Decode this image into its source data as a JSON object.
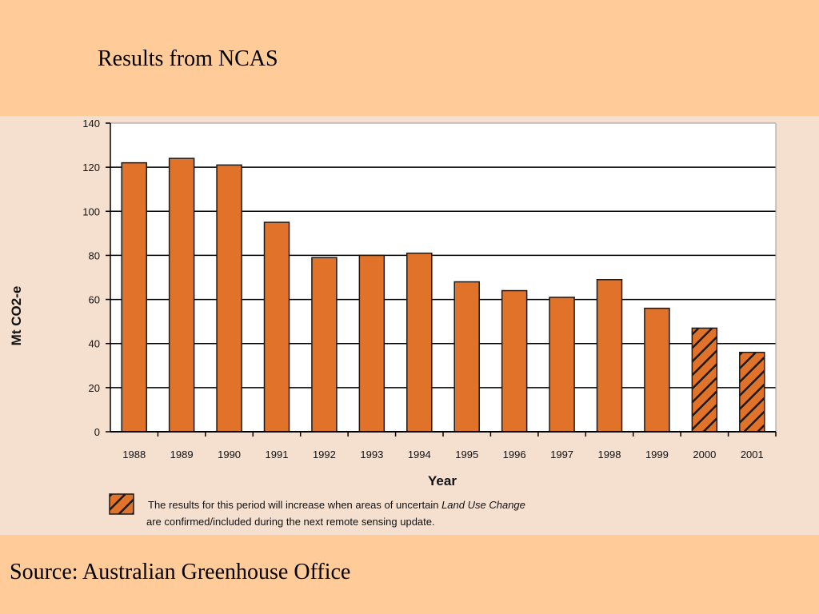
{
  "slide": {
    "title": "Results from NCAS",
    "source": "Source: Australian Greenhouse Office"
  },
  "colors": {
    "background": "#ffcc99",
    "panel": "#f5dfcf",
    "bar": "#e0722a"
  },
  "chart_data": {
    "type": "bar",
    "title": "",
    "xlabel": "Year",
    "ylabel": "Mt CO2-e",
    "ylim": [
      0,
      140
    ],
    "yticks": [
      0,
      20,
      40,
      60,
      80,
      100,
      120,
      140
    ],
    "grid": true,
    "categories": [
      "1988",
      "1989",
      "1990",
      "1991",
      "1992",
      "1993",
      "1994",
      "1995",
      "1996",
      "1997",
      "1998",
      "1999",
      "2000",
      "2001"
    ],
    "values": [
      122,
      124,
      121,
      95,
      79,
      80,
      81,
      68,
      64,
      61,
      69,
      56,
      47,
      36
    ],
    "hatched": [
      false,
      false,
      false,
      false,
      false,
      false,
      false,
      false,
      false,
      false,
      false,
      false,
      true,
      true
    ],
    "legend": {
      "line1_prefix": "The results for this period will increase when areas of uncertain ",
      "line1_italic": "Land Use Change",
      "line2": "are confirmed/included during the next remote sensing update."
    }
  }
}
